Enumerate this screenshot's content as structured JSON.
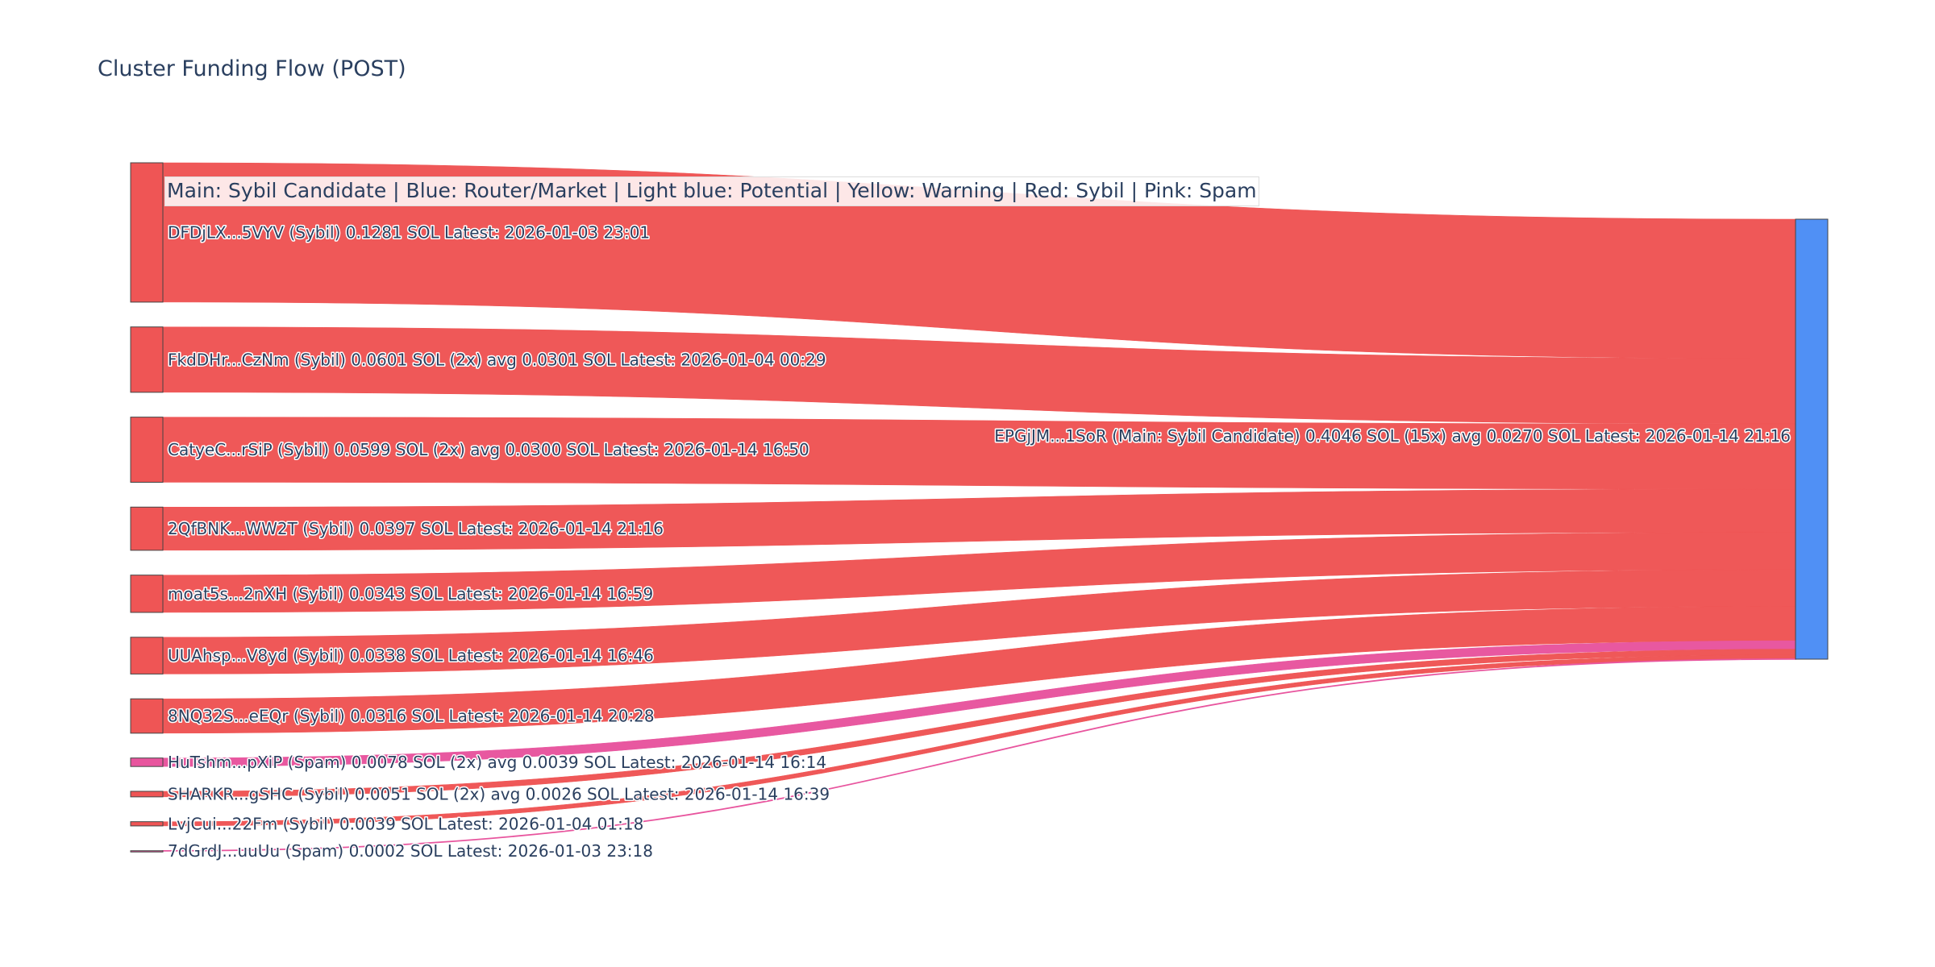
{
  "chart_data": {
    "type": "sankey",
    "title": "Cluster Funding Flow (POST)",
    "annotation": "Main: Sybil Candidate  |  Blue: Router/Market | Light blue: Potential | Yellow: Warning | Red: Sybil | Pink: Spam",
    "colors": {
      "Sybil": "#ef5555",
      "Spam": "#e8559e",
      "Main": "#5090f5"
    },
    "target": {
      "label": "EPGjJM...1SoR (Main: Sybil Candidate) 0.4046 SOL (15x) avg 0.0270 SOL Latest: 2026-01-14 21:16",
      "value": 0.4046,
      "category": "Main"
    },
    "sources": [
      {
        "label": "DFDjLX...5VYV (Sybil) 0.1281 SOL Latest: 2026-01-03 23:01",
        "value": 0.1281,
        "category": "Sybil"
      },
      {
        "label": "FkdDHr...CzNm (Sybil) 0.0601 SOL (2x) avg 0.0301 SOL Latest: 2026-01-04 00:29",
        "value": 0.0601,
        "category": "Sybil"
      },
      {
        "label": "CatyeC...rSiP (Sybil) 0.0599 SOL (2x) avg 0.0300 SOL Latest: 2026-01-14 16:50",
        "value": 0.0599,
        "category": "Sybil"
      },
      {
        "label": "2QfBNK...WW2T (Sybil) 0.0397 SOL Latest: 2026-01-14 21:16",
        "value": 0.0397,
        "category": "Sybil"
      },
      {
        "label": "moat5s...2nXH (Sybil) 0.0343 SOL Latest: 2026-01-14 16:59",
        "value": 0.0343,
        "category": "Sybil"
      },
      {
        "label": "UUAhsp...V8yd (Sybil) 0.0338 SOL Latest: 2026-01-14 16:46",
        "value": 0.0338,
        "category": "Sybil"
      },
      {
        "label": "8NQ32S...eEQr (Sybil) 0.0316 SOL Latest: 2026-01-14 20:28",
        "value": 0.0316,
        "category": "Sybil"
      },
      {
        "label": "HuTshm...pXiP (Spam) 0.0078 SOL (2x) avg 0.0039 SOL Latest: 2026-01-14 16:14",
        "value": 0.0078,
        "category": "Spam"
      },
      {
        "label": "SHARKR...gSHC (Sybil) 0.0051 SOL (2x) avg 0.0026 SOL Latest: 2026-01-14 16:39",
        "value": 0.0051,
        "category": "Sybil"
      },
      {
        "label": "LvjCui...22Fm (Sybil) 0.0039 SOL Latest: 2026-01-04 01:18",
        "value": 0.0039,
        "category": "Sybil"
      },
      {
        "label": "7dGrdJ...uuUu (Spam) 0.0002 SOL Latest: 2026-01-03 23:18",
        "value": 0.0002,
        "category": "Spam"
      }
    ]
  }
}
